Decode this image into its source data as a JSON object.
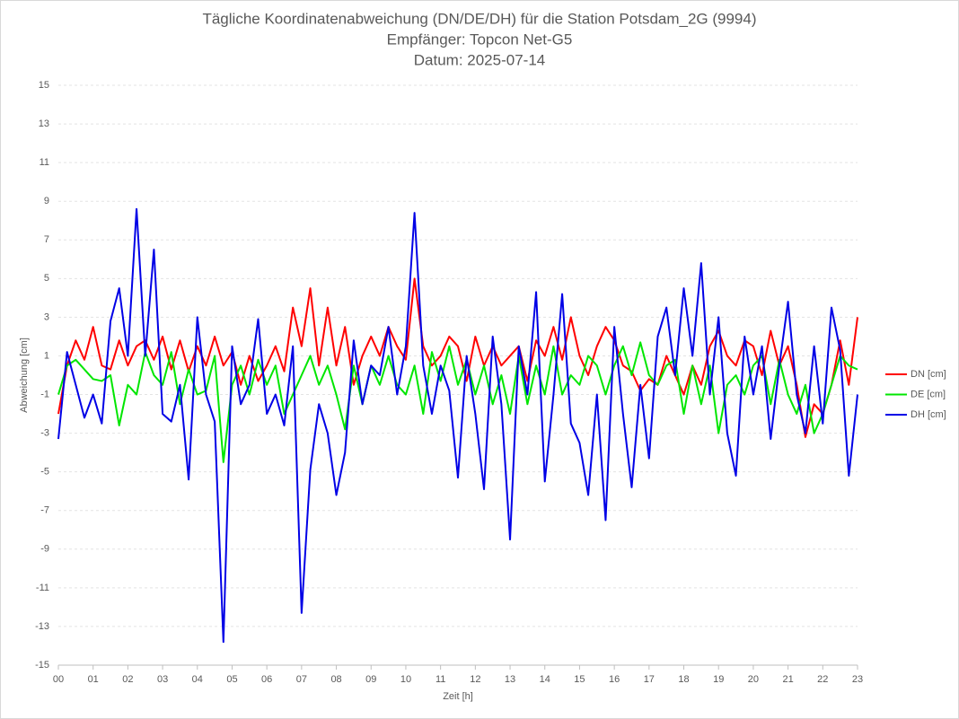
{
  "chart_data": {
    "type": "line",
    "title": "Tägliche Koordinatenabweichung (DN/DE/DH) für die Station Potsdam_2G (9994)",
    "subtitle": [
      "Empfänger: Topcon Net-G5",
      "Datum: 2025-07-14"
    ],
    "x_label": "Zeit [h]",
    "y_label": "Abweichung [cm]",
    "x": [
      0,
      0.25,
      0.5,
      0.75,
      1,
      1.25,
      1.5,
      1.75,
      2,
      2.25,
      2.5,
      2.75,
      3,
      3.25,
      3.5,
      3.75,
      4,
      4.25,
      4.5,
      4.75,
      5,
      5.25,
      5.5,
      5.75,
      6,
      6.25,
      6.5,
      6.75,
      7,
      7.25,
      7.5,
      7.75,
      8,
      8.25,
      8.5,
      8.75,
      9,
      9.25,
      9.5,
      9.75,
      10,
      10.25,
      10.5,
      10.75,
      11,
      11.25,
      11.5,
      11.75,
      12,
      12.25,
      12.5,
      12.75,
      13,
      13.25,
      13.5,
      13.75,
      14,
      14.25,
      14.5,
      14.75,
      15,
      15.25,
      15.5,
      15.75,
      16,
      16.25,
      16.5,
      16.75,
      17,
      17.25,
      17.5,
      17.75,
      18,
      18.25,
      18.5,
      18.75,
      19,
      19.25,
      19.5,
      19.75,
      20,
      20.25,
      20.5,
      20.75,
      21,
      21.25,
      21.5,
      21.75,
      22,
      22.25,
      22.5,
      22.75,
      23
    ],
    "series": [
      {
        "name": "DN [cm]",
        "color": "#ff0000",
        "values": [
          -2,
          0.5,
          1.8,
          0.8,
          2.5,
          0.5,
          0.3,
          1.8,
          0.5,
          1.5,
          1.8,
          0.8,
          2.0,
          0.3,
          1.8,
          0.2,
          1.5,
          0.5,
          2.0,
          0.5,
          1.2,
          -0.5,
          1.0,
          -0.3,
          0.5,
          1.5,
          0.2,
          3.5,
          1.5,
          4.5,
          0.5,
          3.5,
          0.5,
          2.5,
          -0.5,
          1.0,
          2.0,
          1.0,
          2.5,
          1.5,
          0.8,
          5.0,
          1.5,
          0.5,
          1.0,
          2.0,
          1.5,
          -0.3,
          2.0,
          0.5,
          1.5,
          0.5,
          1.0,
          1.5,
          -0.3,
          1.8,
          1.0,
          2.5,
          0.8,
          3.0,
          1.0,
          0.0,
          1.5,
          2.5,
          1.8,
          0.5,
          0.2,
          -0.8,
          -0.2,
          -0.5,
          1.0,
          0.0,
          -1.0,
          0.5,
          -0.5,
          1.5,
          2.3,
          1.0,
          0.5,
          1.8,
          1.5,
          0.0,
          2.3,
          0.5,
          1.5,
          -0.5,
          -3.2,
          -1.5,
          -2.0,
          -0.5,
          1.8,
          -0.5,
          3.0
        ]
      },
      {
        "name": "DE [cm]",
        "color": "#00e600",
        "values": [
          -1.0,
          0.5,
          0.8,
          0.3,
          -0.2,
          -0.3,
          0.0,
          -2.6,
          -0.5,
          -1.0,
          1.2,
          0.0,
          -0.5,
          1.2,
          -1.5,
          0.3,
          -1.0,
          -0.8,
          1.0,
          -4.5,
          -0.5,
          0.5,
          -1.0,
          0.8,
          -0.5,
          0.5,
          -2.0,
          -1.0,
          0.0,
          1.0,
          -0.5,
          0.5,
          -1.0,
          -2.8,
          0.5,
          -1.5,
          0.5,
          -0.5,
          1.0,
          -0.5,
          -1.0,
          0.5,
          -2.0,
          1.2,
          -0.3,
          1.5,
          -0.5,
          0.8,
          -1.0,
          0.5,
          -1.5,
          0.0,
          -2.0,
          1.0,
          -1.5,
          0.5,
          -1.0,
          1.5,
          -1.0,
          0.0,
          -0.5,
          1.0,
          0.5,
          -1.0,
          0.5,
          1.5,
          0.0,
          1.7,
          0.0,
          -0.5,
          0.5,
          0.8,
          -2.0,
          0.5,
          -1.5,
          0.5,
          -3.0,
          -0.5,
          0.0,
          -1.0,
          0.5,
          1.0,
          -1.5,
          0.8,
          -1.0,
          -2.0,
          -0.5,
          -3.0,
          -2.0,
          -0.5,
          1.0,
          0.5,
          0.3
        ]
      },
      {
        "name": "DH [cm]",
        "color": "#0000e6",
        "values": [
          -3.3,
          1.2,
          -0.5,
          -2.2,
          -1.0,
          -2.5,
          2.8,
          4.5,
          1.0,
          8.6,
          1.0,
          6.5,
          -2.0,
          -2.4,
          -0.5,
          -5.4,
          3.0,
          -1.0,
          -2.4,
          -13.8,
          1.5,
          -1.5,
          -0.5,
          2.9,
          -2.0,
          -1.0,
          -2.6,
          1.5,
          -12.3,
          -4.9,
          -1.5,
          -3.0,
          -6.2,
          -4.0,
          1.8,
          -1.5,
          0.5,
          0.0,
          2.5,
          -1.0,
          1.5,
          8.4,
          0.5,
          -2.0,
          0.5,
          -0.8,
          -5.3,
          1.0,
          -2.0,
          -5.9,
          2.0,
          -1.5,
          -8.5,
          1.5,
          -1.0,
          4.3,
          -5.5,
          -1.0,
          4.2,
          -2.5,
          -3.5,
          -6.2,
          -1.0,
          -7.5,
          2.5,
          -2.0,
          -5.8,
          -0.5,
          -4.3,
          2.0,
          3.5,
          0.0,
          4.5,
          1.0,
          5.8,
          -1.0,
          3.0,
          -3.0,
          -5.2,
          2.0,
          -1.0,
          1.5,
          -3.3,
          0.5,
          3.8,
          -1.0,
          -3.0,
          1.5,
          -2.5,
          3.5,
          1.3,
          -5.2,
          -1.0
        ]
      }
    ],
    "xlim": [
      0,
      23
    ],
    "xticks": [
      {
        "value": 0,
        "label": "00"
      },
      {
        "value": 1,
        "label": "01"
      },
      {
        "value": 2,
        "label": "02"
      },
      {
        "value": 3,
        "label": "03"
      },
      {
        "value": 4,
        "label": "04"
      },
      {
        "value": 5,
        "label": "05"
      },
      {
        "value": 6,
        "label": "06"
      },
      {
        "value": 7,
        "label": "07"
      },
      {
        "value": 8,
        "label": "08"
      },
      {
        "value": 9,
        "label": "09"
      },
      {
        "value": 10,
        "label": "10"
      },
      {
        "value": 11,
        "label": "11"
      },
      {
        "value": 12,
        "label": "12"
      },
      {
        "value": 13,
        "label": "13"
      },
      {
        "value": 14,
        "label": "14"
      },
      {
        "value": 15,
        "label": "15"
      },
      {
        "value": 16,
        "label": "16"
      },
      {
        "value": 17,
        "label": "17"
      },
      {
        "value": 18,
        "label": "18"
      },
      {
        "value": 19,
        "label": "19"
      },
      {
        "value": 20,
        "label": "20"
      },
      {
        "value": 21,
        "label": "21"
      },
      {
        "value": 22,
        "label": "22"
      },
      {
        "value": 23,
        "label": "23"
      }
    ],
    "ylim": [
      -15,
      15
    ],
    "yticks": [
      -15,
      -13,
      -11,
      -9,
      -7,
      -5,
      -3,
      -1,
      1,
      3,
      5,
      7,
      9,
      11,
      13,
      15
    ],
    "grid": true,
    "legend": "right"
  }
}
